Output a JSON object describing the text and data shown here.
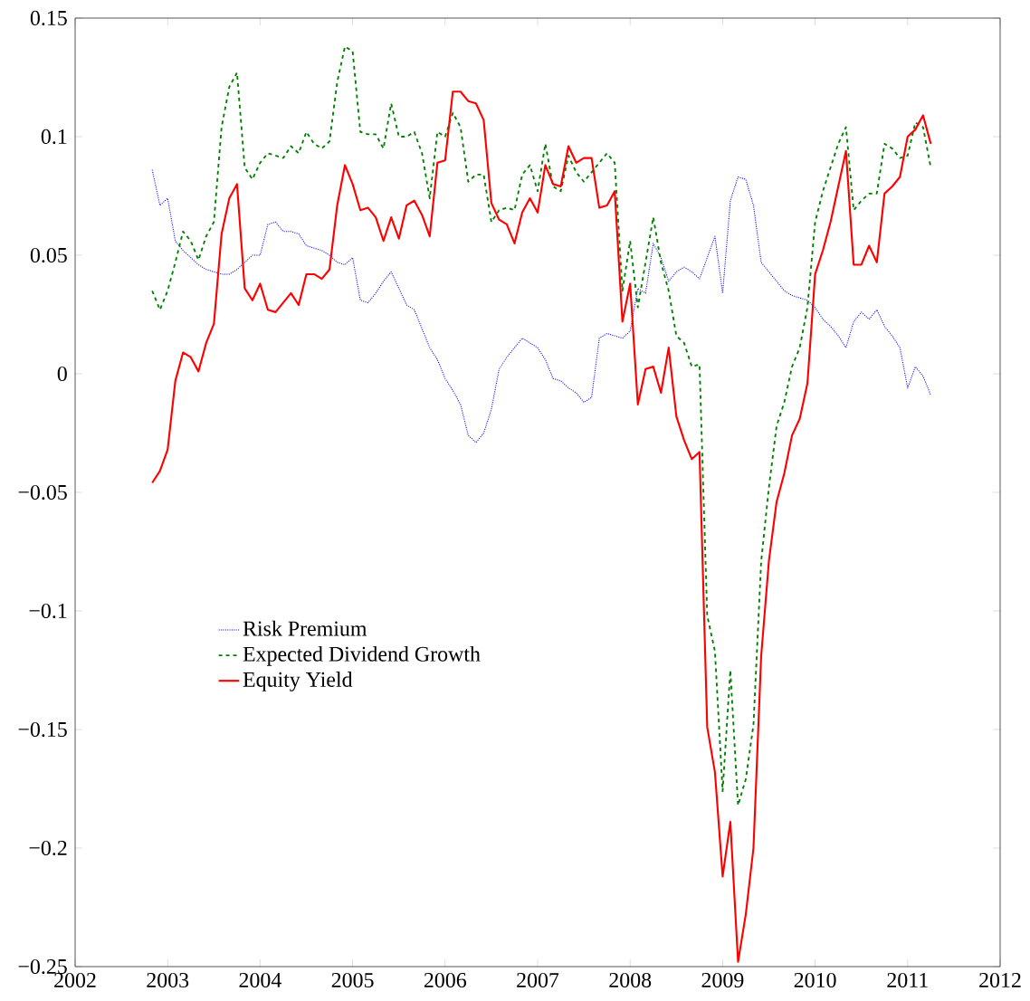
{
  "chart_data": {
    "type": "line",
    "x": [
      "2002-11",
      "2002-12",
      "2003-01",
      "2003-02",
      "2003-03",
      "2003-04",
      "2003-05",
      "2003-06",
      "2003-07",
      "2003-08",
      "2003-09",
      "2003-10",
      "2003-11",
      "2003-12",
      "2004-01",
      "2004-02",
      "2004-03",
      "2004-04",
      "2004-05",
      "2004-06",
      "2004-07",
      "2004-08",
      "2004-09",
      "2004-10",
      "2004-11",
      "2004-12",
      "2005-01",
      "2005-02",
      "2005-03",
      "2005-04",
      "2005-05",
      "2005-06",
      "2005-07",
      "2005-08",
      "2005-09",
      "2005-10",
      "2005-11",
      "2005-12",
      "2006-01",
      "2006-02",
      "2006-03",
      "2006-04",
      "2006-05",
      "2006-06",
      "2006-07",
      "2006-08",
      "2006-09",
      "2006-10",
      "2006-11",
      "2006-12",
      "2007-01",
      "2007-02",
      "2007-03",
      "2007-04",
      "2007-05",
      "2007-06",
      "2007-07",
      "2007-08",
      "2007-09",
      "2007-10",
      "2007-11",
      "2007-12",
      "2008-01",
      "2008-02",
      "2008-03",
      "2008-04",
      "2008-05",
      "2008-06",
      "2008-07",
      "2008-08",
      "2008-09",
      "2008-10",
      "2008-11",
      "2008-12",
      "2009-01",
      "2009-02",
      "2009-03",
      "2009-04",
      "2009-05",
      "2009-06",
      "2009-07",
      "2009-08",
      "2009-09",
      "2009-10",
      "2009-11",
      "2009-12",
      "2010-01",
      "2010-02",
      "2010-03",
      "2010-04",
      "2010-05",
      "2010-06",
      "2010-07",
      "2010-08",
      "2010-09",
      "2010-10",
      "2010-11",
      "2010-12",
      "2011-01",
      "2011-02",
      "2011-03",
      "2011-04"
    ],
    "series": [
      {
        "name": "Risk Premium",
        "color": "#0000ff",
        "line_style": "dotted",
        "values": [
          0.086,
          0.071,
          0.074,
          0.056,
          0.052,
          0.049,
          0.046,
          0.044,
          0.043,
          0.042,
          0.042,
          0.044,
          0.047,
          0.05,
          0.05,
          0.063,
          0.064,
          0.06,
          0.06,
          0.059,
          0.054,
          0.053,
          0.052,
          0.05,
          0.047,
          0.046,
          0.049,
          0.031,
          0.03,
          0.034,
          0.039,
          0.043,
          0.036,
          0.029,
          0.027,
          0.019,
          0.011,
          0.006,
          -0.002,
          -0.007,
          -0.013,
          -0.026,
          -0.029,
          -0.025,
          -0.015,
          0.002,
          0.007,
          0.011,
          0.015,
          0.013,
          0.011,
          0.006,
          -0.002,
          -0.003,
          -0.006,
          -0.008,
          -0.012,
          -0.01,
          0.015,
          0.017,
          0.016,
          0.015,
          0.018,
          0.036,
          0.034,
          0.055,
          0.049,
          0.039,
          0.043,
          0.045,
          0.043,
          0.04,
          0.049,
          0.058,
          0.034,
          0.073,
          0.083,
          0.082,
          0.071,
          0.047,
          0.043,
          0.039,
          0.035,
          0.033,
          0.032,
          0.031,
          0.028,
          0.023,
          0.02,
          0.016,
          0.011,
          0.022,
          0.026,
          0.023,
          0.027,
          0.02,
          0.016,
          0.011,
          -0.006,
          0.003,
          -0.001,
          -0.009
        ]
      },
      {
        "name": "Expected Dividend Growth",
        "color": "#008000",
        "line_style": "dashed",
        "values": [
          0.035,
          0.027,
          0.035,
          0.047,
          0.06,
          0.056,
          0.048,
          0.058,
          0.064,
          0.104,
          0.121,
          0.127,
          0.087,
          0.082,
          0.089,
          0.093,
          0.092,
          0.091,
          0.096,
          0.093,
          0.102,
          0.097,
          0.095,
          0.098,
          0.123,
          0.138,
          0.136,
          0.102,
          0.101,
          0.101,
          0.095,
          0.114,
          0.1,
          0.1,
          0.102,
          0.093,
          0.074,
          0.102,
          0.1,
          0.11,
          0.104,
          0.081,
          0.084,
          0.084,
          0.064,
          0.069,
          0.07,
          0.069,
          0.084,
          0.088,
          0.077,
          0.097,
          0.079,
          0.077,
          0.092,
          0.085,
          0.081,
          0.085,
          0.089,
          0.093,
          0.089,
          0.035,
          0.056,
          0.028,
          0.047,
          0.066,
          0.047,
          0.035,
          0.016,
          0.013,
          0.003,
          0.004,
          -0.102,
          -0.117,
          -0.176,
          -0.125,
          -0.182,
          -0.171,
          -0.148,
          -0.079,
          -0.048,
          -0.022,
          -0.012,
          0.003,
          0.011,
          0.028,
          0.064,
          0.077,
          0.087,
          0.097,
          0.104,
          0.069,
          0.073,
          0.076,
          0.076,
          0.097,
          0.095,
          0.091,
          0.092,
          0.106,
          0.104,
          0.087
        ]
      },
      {
        "name": "Equity Yield",
        "color": "#ff0000",
        "line_style": "solid",
        "values": [
          -0.046,
          -0.041,
          -0.032,
          -0.003,
          0.009,
          0.007,
          0.001,
          0.013,
          0.021,
          0.059,
          0.074,
          0.08,
          0.036,
          0.031,
          0.038,
          0.027,
          0.026,
          0.03,
          0.034,
          0.029,
          0.042,
          0.042,
          0.04,
          0.044,
          0.071,
          0.088,
          0.08,
          0.069,
          0.07,
          0.066,
          0.056,
          0.066,
          0.057,
          0.071,
          0.073,
          0.067,
          0.058,
          0.089,
          0.09,
          0.119,
          0.119,
          0.115,
          0.114,
          0.107,
          0.072,
          0.065,
          0.063,
          0.055,
          0.068,
          0.074,
          0.068,
          0.088,
          0.08,
          0.079,
          0.096,
          0.089,
          0.091,
          0.091,
          0.07,
          0.071,
          0.077,
          0.022,
          0.038,
          -0.013,
          0.002,
          0.003,
          -0.008,
          0.011,
          -0.018,
          -0.028,
          -0.036,
          -0.033,
          -0.149,
          -0.168,
          -0.212,
          -0.189,
          -0.248,
          -0.228,
          -0.2,
          -0.119,
          -0.079,
          -0.054,
          -0.042,
          -0.026,
          -0.019,
          -0.004,
          0.042,
          0.052,
          0.064,
          0.079,
          0.094,
          0.046,
          0.046,
          0.054,
          0.047,
          0.076,
          0.079,
          0.083,
          0.1,
          0.103,
          0.109,
          0.097
        ]
      }
    ],
    "xlim": [
      "2002",
      "2012"
    ],
    "xticks": [
      "2002",
      "2003",
      "2004",
      "2005",
      "2006",
      "2007",
      "2008",
      "2009",
      "2010",
      "2011",
      "2012"
    ],
    "ylim": [
      -0.25,
      0.15
    ],
    "yticks": [
      {
        "value": -0.25,
        "label": "−0.25"
      },
      {
        "value": -0.2,
        "label": "−0.2"
      },
      {
        "value": -0.15,
        "label": "−0.15"
      },
      {
        "value": -0.1,
        "label": "−0.1"
      },
      {
        "value": -0.05,
        "label": "−0.05"
      },
      0,
      0.05,
      0.1,
      0.15
    ],
    "grid": false,
    "legend": "left"
  }
}
